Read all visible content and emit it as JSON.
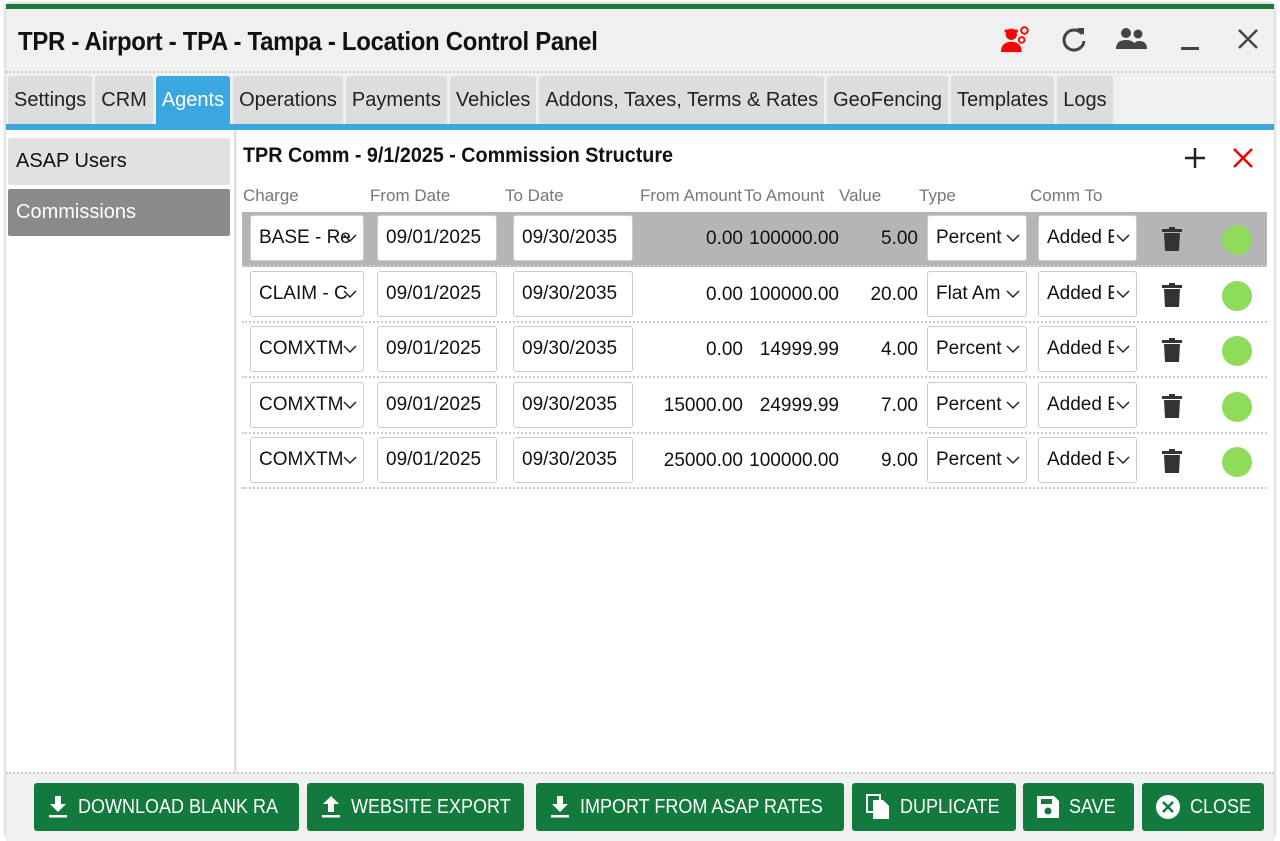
{
  "window": {
    "title": "TPR - Airport - TPA - Tampa - Location Control Panel",
    "accent": "#1b7a3e"
  },
  "header_icons": [
    "agent-settings-icon",
    "refresh-icon",
    "users-icon",
    "minimize-icon",
    "close-icon"
  ],
  "tabs": [
    {
      "label": "Settings"
    },
    {
      "label": "CRM"
    },
    {
      "label": "Agents",
      "active": true
    },
    {
      "label": "Operations"
    },
    {
      "label": "Payments"
    },
    {
      "label": "Vehicles"
    },
    {
      "label": "Addons, Taxes, Terms & Rates"
    },
    {
      "label": "GeoFencing"
    },
    {
      "label": "Templates"
    },
    {
      "label": "Logs"
    }
  ],
  "sidebar": {
    "items": [
      {
        "label": "ASAP Users"
      },
      {
        "label": "Commissions",
        "active": true
      }
    ]
  },
  "main": {
    "title": "TPR Comm - 9/1/2025 - Commission Structure",
    "columns": [
      "Charge",
      "From Date",
      "To Date",
      "From Amount",
      "To Amount",
      "Value",
      "Type",
      "Comm To"
    ],
    "rows": [
      {
        "charge": "BASE - Re",
        "from_date": "09/01/2025",
        "to_date": "09/30/2035",
        "from_amount": "0.00",
        "to_amount": "100000.00",
        "value": "5.00",
        "type": "Percent",
        "comm_to": "Added E",
        "selected": true
      },
      {
        "charge": "CLAIM - C",
        "from_date": "09/01/2025",
        "to_date": "09/30/2035",
        "from_amount": "0.00",
        "to_amount": "100000.00",
        "value": "20.00",
        "type": "Flat Am",
        "comm_to": "Added E"
      },
      {
        "charge": "COMXTM",
        "from_date": "09/01/2025",
        "to_date": "09/30/2035",
        "from_amount": "0.00",
        "to_amount": "14999.99",
        "value": "4.00",
        "type": "Percent",
        "comm_to": "Added E"
      },
      {
        "charge": "COMXTM",
        "from_date": "09/01/2025",
        "to_date": "09/30/2035",
        "from_amount": "15000.00",
        "to_amount": "24999.99",
        "value": "7.00",
        "type": "Percent",
        "comm_to": "Added E"
      },
      {
        "charge": "COMXTM",
        "from_date": "09/01/2025",
        "to_date": "09/30/2035",
        "from_amount": "25000.00",
        "to_amount": "100000.00",
        "value": "9.00",
        "type": "Percent",
        "comm_to": "Added E"
      }
    ]
  },
  "footer": {
    "buttons": [
      {
        "label": "DOWNLOAD BLANK RA",
        "icon": "download-icon"
      },
      {
        "label": "WEBSITE EXPORT",
        "icon": "upload-icon"
      },
      {
        "label": "IMPORT FROM ASAP RATES",
        "icon": "download-icon"
      },
      {
        "label": "DUPLICATE",
        "icon": "copy-icon"
      },
      {
        "label": "SAVE",
        "icon": "save-icon"
      },
      {
        "label": "CLOSE",
        "icon": "close-circle-icon"
      }
    ]
  }
}
